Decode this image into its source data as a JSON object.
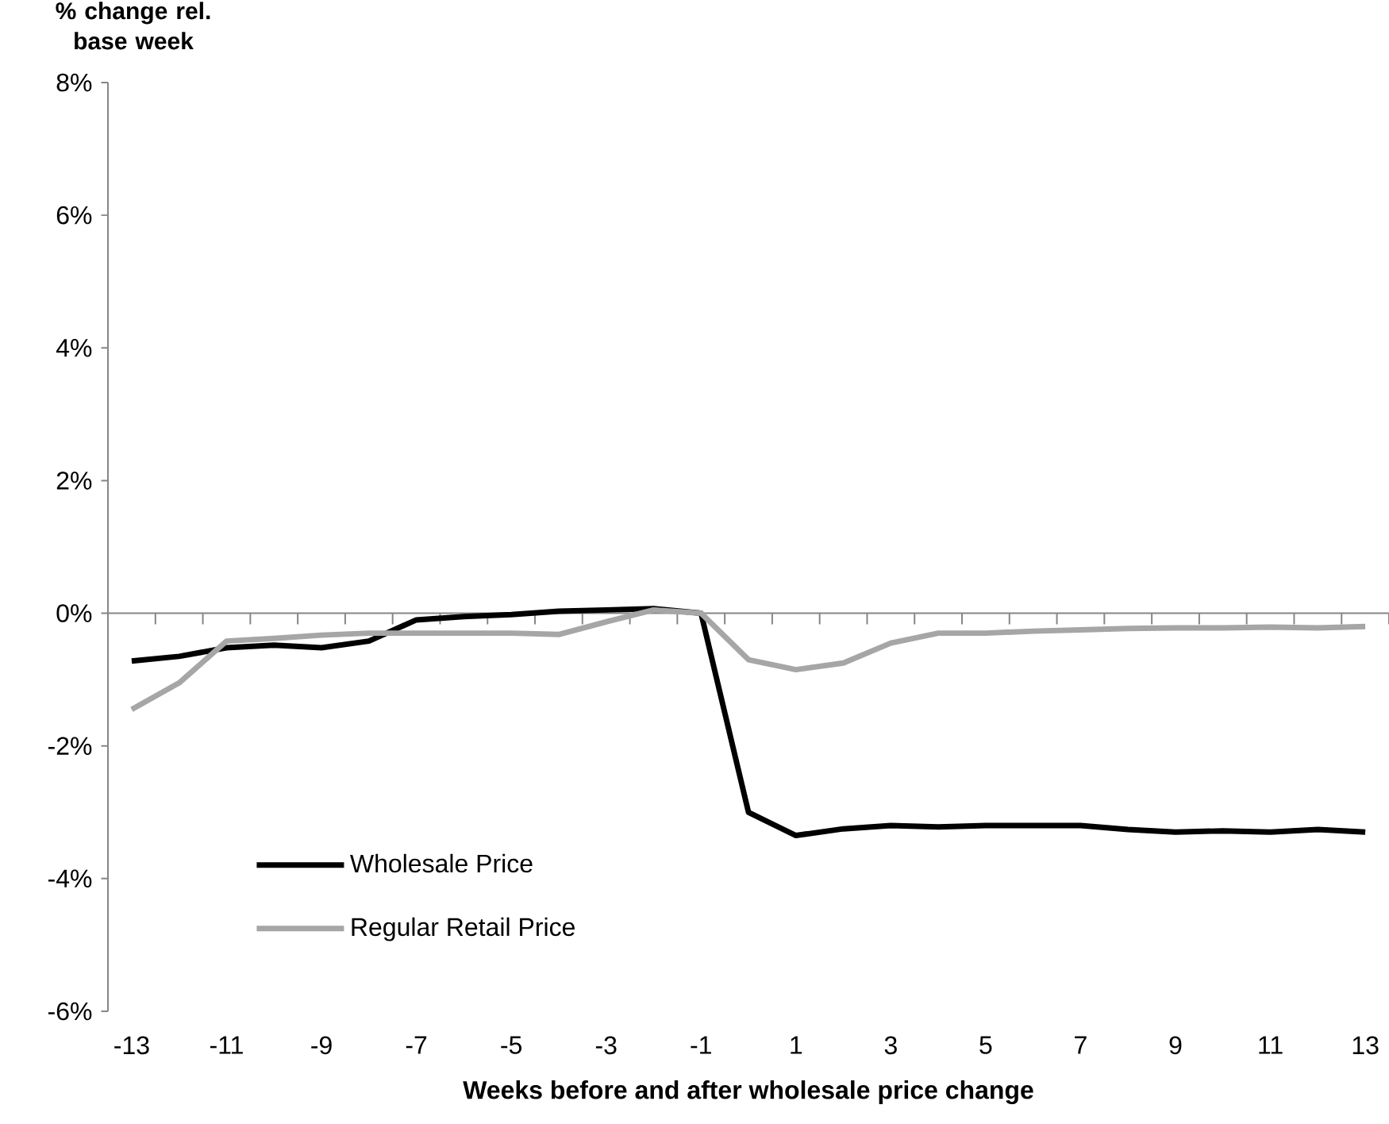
{
  "chart_data": {
    "type": "line",
    "xlabel": "Weeks before and after wholesale price change",
    "ylabel": "% change rel. base week",
    "categories": [
      "-13",
      null,
      "-11",
      null,
      "-9",
      null,
      "-7",
      null,
      "-5",
      null,
      "-3",
      null,
      "-1",
      null,
      "1",
      null,
      "3",
      null,
      "5",
      null,
      "7",
      null,
      "9",
      null,
      "11",
      null,
      "13"
    ],
    "series": [
      {
        "name": "Wholesale Price",
        "color": "#000000",
        "values": [
          -0.72,
          -0.65,
          -0.52,
          -0.48,
          -0.52,
          -0.42,
          -0.1,
          -0.05,
          -0.02,
          0.03,
          0.05,
          0.07,
          0.0,
          -3.0,
          -3.35,
          -3.25,
          -3.2,
          -3.22,
          -3.2,
          -3.2,
          -3.2,
          -3.26,
          -3.3,
          -3.28,
          -3.3,
          -3.26,
          -3.3
        ]
      },
      {
        "name": "Regular Retail Price",
        "color": "#a6a6a6",
        "values": [
          -1.45,
          -1.05,
          -0.42,
          -0.38,
          -0.33,
          -0.3,
          -0.3,
          -0.3,
          -0.3,
          -0.32,
          -0.13,
          0.05,
          0.0,
          -0.7,
          -0.85,
          -0.75,
          -0.45,
          -0.3,
          -0.3,
          -0.27,
          -0.25,
          -0.23,
          -0.22,
          -0.22,
          -0.21,
          -0.22,
          -0.2
        ]
      }
    ],
    "ylim": [
      -6,
      8
    ],
    "yticks": [
      {
        "value": -6,
        "label": "-6%"
      },
      {
        "value": -4,
        "label": "-4%"
      },
      {
        "value": -2,
        "label": "-2%"
      },
      {
        "value": 0,
        "label": "0%"
      },
      {
        "value": 2,
        "label": "2%"
      },
      {
        "value": 4,
        "label": "4%"
      },
      {
        "value": 6,
        "label": "6%"
      },
      {
        "value": 8,
        "label": "8%"
      }
    ],
    "legend": "bottom left",
    "marker": "none",
    "line_style": "solid"
  }
}
